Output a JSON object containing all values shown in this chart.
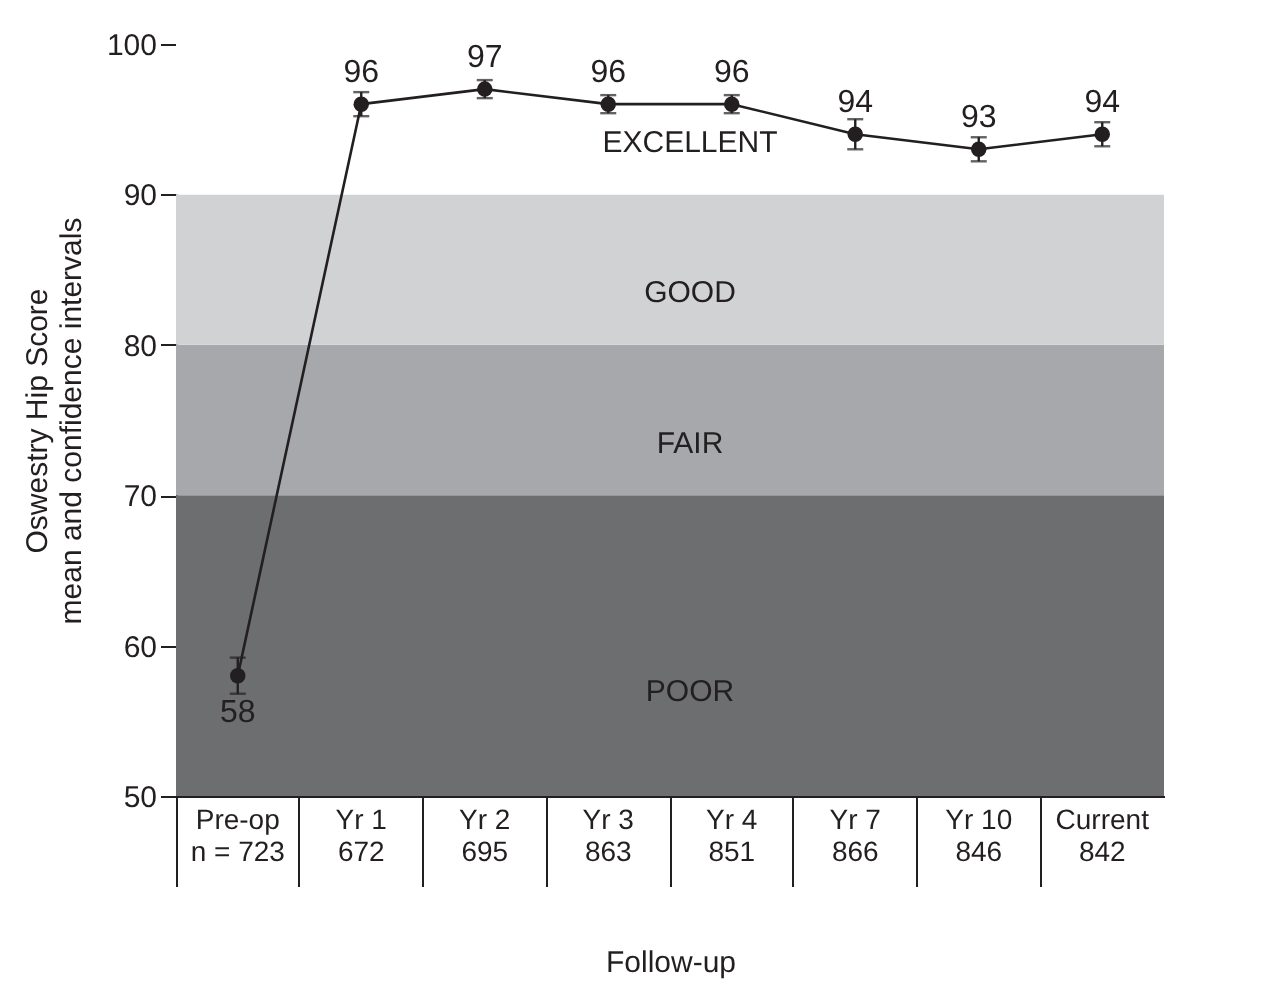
{
  "chart_data": {
    "type": "line",
    "categories": [
      "Pre-op\nn = 723",
      "Yr 1\n672",
      "Yr 2\n695",
      "Yr 3\n863",
      "Yr 4\n851",
      "Yr 7\n866",
      "Yr 10\n846",
      "Current\n842"
    ],
    "series": [
      {
        "color": "#231f20",
        "values": [
          58,
          96,
          97,
          96,
          96,
          94,
          93,
          94
        ],
        "errors": [
          1.2,
          0.8,
          0.6,
          0.6,
          0.6,
          1,
          0.8,
          0.8
        ]
      }
    ],
    "data_labels": true,
    "marker": "circle",
    "line_style": "solid",
    "xlabel": "Follow-up",
    "ylabel": "Oswestry Hip Score\nmean and confidence intervals",
    "ylim": [
      50,
      100
    ],
    "yticks": [
      50,
      60,
      70,
      80,
      90,
      100
    ],
    "grid": false,
    "bands": [
      {
        "axis": "y",
        "from": 50,
        "to": 70,
        "label": "POOR",
        "color": "#6d6e70"
      },
      {
        "axis": "y",
        "from": 70,
        "to": 80,
        "label": "FAIR",
        "color": "#a6a8ab"
      },
      {
        "axis": "y",
        "from": 80,
        "to": 90,
        "label": "GOOD",
        "color": "#d1d2d4"
      },
      {
        "axis": "y",
        "from": 90,
        "to": 100,
        "label": "EXCELLENT",
        "color": "#ffffff"
      }
    ]
  }
}
